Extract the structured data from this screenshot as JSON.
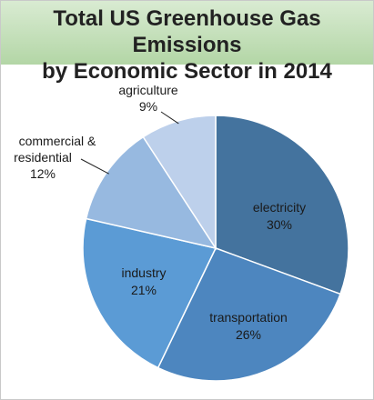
{
  "chart_data": {
    "type": "pie",
    "title": [
      "Total US Greenhouse Gas Emissions",
      "by Economic Sector in 2014"
    ],
    "unit": "%",
    "slices": [
      {
        "name": "electricity",
        "value": 30,
        "label": "30%",
        "color": "#44739e"
      },
      {
        "name": "transportation",
        "value": 26,
        "label": "26%",
        "color": "#4d86bf"
      },
      {
        "name": "industry",
        "value": 21,
        "label": "21%",
        "color": "#5b9bd5"
      },
      {
        "name": "commercial & residential",
        "label_lines": [
          "commercial &",
          "residential"
        ],
        "value": 12,
        "label": "12%",
        "color": "#97b9e0"
      },
      {
        "name": "agriculture",
        "value": 9,
        "label": "9%",
        "color": "#bdd0eb"
      }
    ],
    "legend": "none",
    "grid": false
  }
}
